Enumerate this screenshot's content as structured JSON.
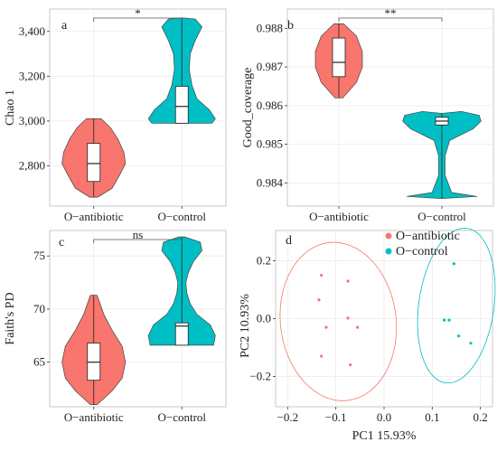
{
  "colors": {
    "antibiotic": "#F8766D",
    "control": "#00BFC4",
    "grid": "#EBEBEB",
    "panel_border": "#BBBBBB"
  },
  "chart_data": [
    {
      "type": "violin",
      "panel_label": "a",
      "ylabel": "Chao 1",
      "categories": [
        "O−antibiotic",
        "O−control"
      ],
      "ylim": [
        2620,
        3500
      ],
      "yticks": [
        2800,
        3000,
        3200,
        3400
      ],
      "ytick_labels": [
        "2,800",
        "3,000",
        "3,200",
        "3,400"
      ],
      "significance": "*",
      "groups": [
        {
          "name": "O−antibiotic",
          "min": 2660,
          "q1": 2730,
          "median": 2810,
          "q3": 2900,
          "max": 3010,
          "density": [
            [
              2660,
              0.12
            ],
            [
              2700,
              0.55
            ],
            [
              2760,
              0.78
            ],
            [
              2810,
              0.95
            ],
            [
              2860,
              0.9
            ],
            [
              2920,
              0.72
            ],
            [
              2970,
              0.5
            ],
            [
              3010,
              0.22
            ]
          ]
        },
        {
          "name": "O−control",
          "min": 2990,
          "q1": 2990,
          "median": 3065,
          "q3": 3155,
          "max": 3460,
          "density": [
            [
              2990,
              0.9
            ],
            [
              3010,
              1.0
            ],
            [
              3050,
              0.82
            ],
            [
              3100,
              0.45
            ],
            [
              3160,
              0.3
            ],
            [
              3230,
              0.22
            ],
            [
              3300,
              0.25
            ],
            [
              3360,
              0.4
            ],
            [
              3420,
              0.6
            ],
            [
              3455,
              0.4
            ],
            [
              3460,
              0.05
            ]
          ]
        }
      ]
    },
    {
      "type": "violin",
      "panel_label": "b",
      "ylabel": "Good_coverage",
      "categories": [
        "O−antibiotic",
        "O−control"
      ],
      "ylim": [
        0.9834,
        0.9885
      ],
      "yticks": [
        0.984,
        0.985,
        0.986,
        0.987,
        0.988
      ],
      "ytick_labels": [
        "0.984",
        "0.985",
        "0.986",
        "0.987",
        "0.988"
      ],
      "significance": "**",
      "groups": [
        {
          "name": "O−antibiotic",
          "min": 0.9862,
          "q1": 0.98675,
          "median": 0.98712,
          "q3": 0.98775,
          "max": 0.98812,
          "density": [
            [
              0.9862,
              0.1
            ],
            [
              0.9866,
              0.45
            ],
            [
              0.987,
              0.6
            ],
            [
              0.9874,
              0.6
            ],
            [
              0.9878,
              0.45
            ],
            [
              0.98812,
              0.12
            ]
          ]
        },
        {
          "name": "O−control",
          "min": 0.9836,
          "q1": 0.9855,
          "median": 0.9856,
          "q3": 0.9857,
          "max": 0.9858,
          "density": [
            [
              0.9836,
              0.05
            ],
            [
              0.98365,
              0.9
            ],
            [
              0.98375,
              0.25
            ],
            [
              0.9842,
              0.08
            ],
            [
              0.9847,
              0.08
            ],
            [
              0.9851,
              0.2
            ],
            [
              0.9854,
              0.8
            ],
            [
              0.9856,
              1.0
            ],
            [
              0.98575,
              0.95
            ],
            [
              0.98585,
              0.5
            ]
          ]
        }
      ]
    },
    {
      "type": "violin",
      "panel_label": "c",
      "ylabel": "Faith's PD",
      "categories": [
        "O−antibiotic",
        "O−control"
      ],
      "ylim": [
        60.8,
        77.4
      ],
      "yticks": [
        65,
        70,
        75
      ],
      "ytick_labels": [
        "65",
        "70",
        "75"
      ],
      "significance": "ns",
      "groups": [
        {
          "name": "O−antibiotic",
          "min": 61.0,
          "q1": 63.3,
          "median": 65.0,
          "q3": 66.8,
          "max": 71.3,
          "density": [
            [
              61.0,
              0.1
            ],
            [
              62.3,
              0.55
            ],
            [
              63.5,
              0.85
            ],
            [
              65.0,
              0.95
            ],
            [
              66.5,
              0.85
            ],
            [
              68.0,
              0.55
            ],
            [
              69.5,
              0.3
            ],
            [
              71.3,
              0.1
            ]
          ]
        },
        {
          "name": "O−control",
          "min": 66.6,
          "q1": 66.6,
          "median": 68.4,
          "q3": 68.7,
          "max": 76.8,
          "density": [
            [
              66.6,
              0.95
            ],
            [
              67.5,
              1.0
            ],
            [
              68.5,
              0.85
            ],
            [
              69.5,
              0.45
            ],
            [
              70.5,
              0.25
            ],
            [
              71.5,
              0.15
            ],
            [
              72.5,
              0.12
            ],
            [
              73.5,
              0.2
            ],
            [
              74.5,
              0.35
            ],
            [
              75.5,
              0.6
            ],
            [
              76.3,
              0.55
            ],
            [
              76.8,
              0.08
            ]
          ]
        }
      ]
    },
    {
      "type": "scatter",
      "panel_label": "d",
      "xlabel": "PC1 15.93%",
      "ylabel": "PC2 10.93%",
      "xlim": [
        -0.225,
        0.225
      ],
      "ylim": [
        -0.305,
        0.305
      ],
      "xticks": [
        -0.2,
        -0.1,
        0.0,
        0.1,
        0.2
      ],
      "xtick_labels": [
        "−0.2",
        "−0.1",
        "0.0",
        "0.1",
        "0.2"
      ],
      "yticks": [
        -0.2,
        0.0,
        0.2
      ],
      "ytick_labels": [
        "−0.2",
        "0.0",
        "0.2"
      ],
      "legend_position": "top-right",
      "series": [
        {
          "name": "O−antibiotic",
          "color": "#F8766D",
          "points": [
            [
              -0.13,
              0.15
            ],
            [
              -0.075,
              0.13
            ],
            [
              -0.135,
              0.065
            ],
            [
              -0.075,
              0.002
            ],
            [
              -0.12,
              -0.03
            ],
            [
              -0.055,
              -0.03
            ],
            [
              -0.13,
              -0.13
            ],
            [
              -0.07,
              -0.16
            ]
          ],
          "ellipse": {
            "cx": -0.095,
            "cy": -0.01,
            "rx": 0.12,
            "ry": 0.275,
            "angle": -7
          }
        },
        {
          "name": "O−control",
          "color": "#00BFC4",
          "points": [
            [
              0.145,
              0.19
            ],
            [
              0.125,
              -0.005
            ],
            [
              0.135,
              -0.005
            ],
            [
              0.155,
              -0.06
            ],
            [
              0.18,
              -0.085
            ]
          ],
          "ellipse": {
            "cx": 0.15,
            "cy": 0.045,
            "rx": 0.078,
            "ry": 0.27,
            "angle": 8
          }
        }
      ]
    }
  ]
}
